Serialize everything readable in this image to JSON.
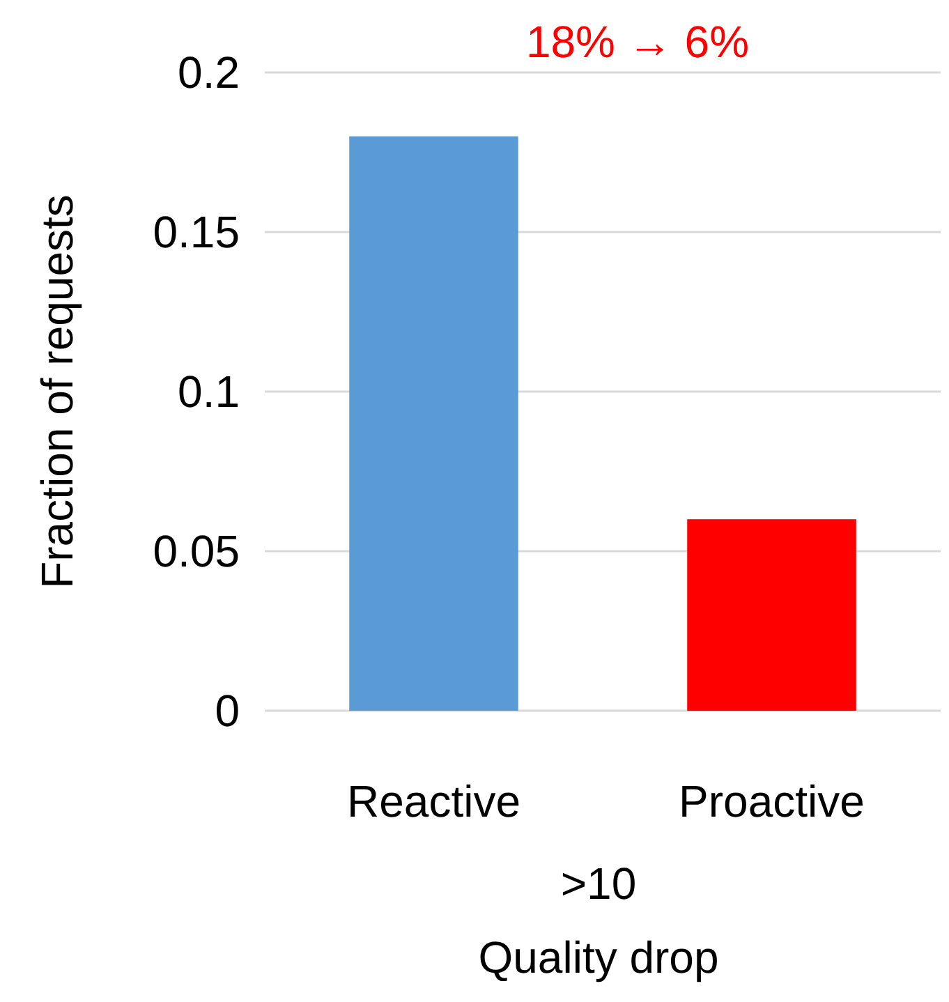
{
  "chart_data": {
    "type": "bar",
    "categories": [
      "Reactive",
      "Proactive"
    ],
    "values": [
      0.18,
      0.06
    ],
    "colors": [
      "#5b9bd5",
      "#ff0000"
    ],
    "ylabel": "Fraction of requests",
    "xlabel": ">10\nQuality drop",
    "ylim": [
      0,
      0.2
    ],
    "yticks": [
      0,
      0.05,
      0.1,
      0.15,
      0.2
    ],
    "grid": "y",
    "annotations": [
      "18% → 6%"
    ]
  }
}
